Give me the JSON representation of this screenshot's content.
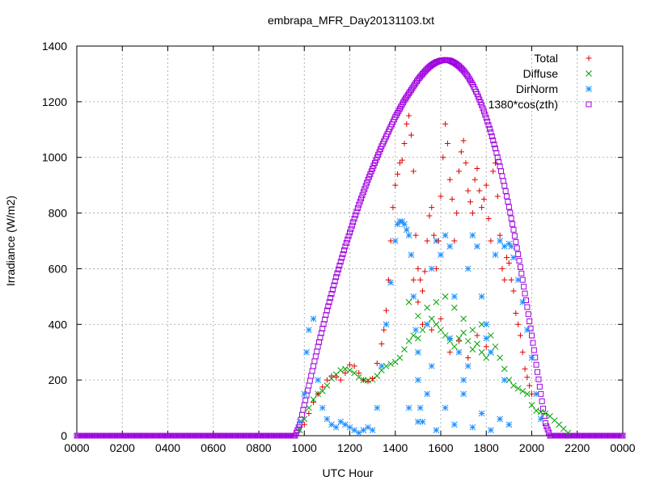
{
  "chart_data": {
    "type": "scatter",
    "title": "embrapa_MFR_Day20131103.txt",
    "xlabel": "UTC Hour",
    "ylabel": "Irradiance (W/m2)",
    "xlim": [
      0,
      2400
    ],
    "ylim": [
      0,
      1400
    ],
    "x_ticks": [
      "0000",
      "0200",
      "0400",
      "0600",
      "0800",
      "1000",
      "1200",
      "1400",
      "1600",
      "1800",
      "2000",
      "2200",
      "0000"
    ],
    "y_ticks": [
      "0",
      "200",
      "400",
      "600",
      "800",
      "1000",
      "1200",
      "1400"
    ],
    "grid": true,
    "legend_position": "top-right",
    "series": [
      {
        "name": "Total",
        "marker": "plus",
        "color": "#e00000",
        "points": [
          [
            1000,
            40
          ],
          [
            1020,
            80
          ],
          [
            1040,
            120
          ],
          [
            1060,
            150
          ],
          [
            1080,
            175
          ],
          [
            1100,
            200
          ],
          [
            1120,
            215
          ],
          [
            1140,
            210
          ],
          [
            1160,
            200
          ],
          [
            1180,
            225
          ],
          [
            1200,
            255
          ],
          [
            1220,
            250
          ],
          [
            1240,
            225
          ],
          [
            1260,
            200
          ],
          [
            1280,
            195
          ],
          [
            1300,
            205
          ],
          [
            1320,
            260
          ],
          [
            1340,
            330
          ],
          [
            1350,
            380
          ],
          [
            1360,
            450
          ],
          [
            1370,
            560
          ],
          [
            1380,
            700
          ],
          [
            1390,
            820
          ],
          [
            1400,
            900
          ],
          [
            1410,
            940
          ],
          [
            1420,
            980
          ],
          [
            1430,
            990
          ],
          [
            1440,
            1050
          ],
          [
            1450,
            1120
          ],
          [
            1460,
            1150
          ],
          [
            1470,
            1080
          ],
          [
            1480,
            950
          ],
          [
            1490,
            720
          ],
          [
            1500,
            600
          ],
          [
            1510,
            560
          ],
          [
            1520,
            520
          ],
          [
            1530,
            590
          ],
          [
            1540,
            700
          ],
          [
            1550,
            790
          ],
          [
            1560,
            820
          ],
          [
            1570,
            720
          ],
          [
            1580,
            600
          ],
          [
            1590,
            700
          ],
          [
            1600,
            860
          ],
          [
            1610,
            1000
          ],
          [
            1620,
            1120
          ],
          [
            1630,
            1050
          ],
          [
            1640,
            920
          ],
          [
            1650,
            850
          ],
          [
            1660,
            700
          ],
          [
            1670,
            800
          ],
          [
            1680,
            950
          ],
          [
            1690,
            1020
          ],
          [
            1700,
            1060
          ],
          [
            1710,
            980
          ],
          [
            1720,
            880
          ],
          [
            1730,
            840
          ],
          [
            1740,
            800
          ],
          [
            1750,
            920
          ],
          [
            1760,
            960
          ],
          [
            1770,
            880
          ],
          [
            1780,
            820
          ],
          [
            1790,
            850
          ],
          [
            1800,
            900
          ],
          [
            1810,
            780
          ],
          [
            1820,
            700
          ],
          [
            1830,
            950
          ],
          [
            1840,
            980
          ],
          [
            1850,
            860
          ],
          [
            1860,
            720
          ],
          [
            1870,
            600
          ],
          [
            1880,
            560
          ],
          [
            1890,
            640
          ],
          [
            1900,
            620
          ],
          [
            1910,
            560
          ],
          [
            1920,
            520
          ],
          [
            1930,
            440
          ],
          [
            1940,
            400
          ],
          [
            1950,
            360
          ],
          [
            1960,
            300
          ],
          [
            1970,
            240
          ],
          [
            1980,
            210
          ],
          [
            1990,
            180
          ],
          [
            2000,
            150
          ],
          [
            1480,
            560
          ],
          [
            1500,
            480
          ],
          [
            1520,
            400
          ],
          [
            1560,
            380
          ],
          [
            1600,
            420
          ],
          [
            1640,
            300
          ],
          [
            1680,
            340
          ],
          [
            1720,
            280
          ],
          [
            1760,
            360
          ],
          [
            1800,
            320
          ]
        ]
      },
      {
        "name": "Diffuse",
        "marker": "cross",
        "color": "#00a000",
        "points": [
          [
            980,
            20
          ],
          [
            1000,
            60
          ],
          [
            1020,
            100
          ],
          [
            1040,
            130
          ],
          [
            1060,
            150
          ],
          [
            1080,
            160
          ],
          [
            1100,
            180
          ],
          [
            1120,
            205
          ],
          [
            1140,
            220
          ],
          [
            1160,
            235
          ],
          [
            1180,
            240
          ],
          [
            1200,
            235
          ],
          [
            1220,
            225
          ],
          [
            1240,
            210
          ],
          [
            1260,
            200
          ],
          [
            1280,
            198
          ],
          [
            1300,
            202
          ],
          [
            1320,
            215
          ],
          [
            1340,
            235
          ],
          [
            1360,
            250
          ],
          [
            1380,
            258
          ],
          [
            1400,
            265
          ],
          [
            1420,
            280
          ],
          [
            1440,
            310
          ],
          [
            1460,
            340
          ],
          [
            1480,
            360
          ],
          [
            1500,
            350
          ],
          [
            1520,
            380
          ],
          [
            1540,
            400
          ],
          [
            1560,
            420
          ],
          [
            1580,
            400
          ],
          [
            1600,
            380
          ],
          [
            1620,
            360
          ],
          [
            1640,
            340
          ],
          [
            1660,
            320
          ],
          [
            1680,
            350
          ],
          [
            1700,
            370
          ],
          [
            1720,
            340
          ],
          [
            1740,
            310
          ],
          [
            1760,
            330
          ],
          [
            1780,
            300
          ],
          [
            1800,
            280
          ],
          [
            1820,
            300
          ],
          [
            1840,
            320
          ],
          [
            1860,
            280
          ],
          [
            1880,
            240
          ],
          [
            1900,
            200
          ],
          [
            1920,
            180
          ],
          [
            1940,
            170
          ],
          [
            1960,
            160
          ],
          [
            1980,
            150
          ],
          [
            2000,
            110
          ],
          [
            2020,
            90
          ],
          [
            2040,
            85
          ],
          [
            2060,
            80
          ],
          [
            2080,
            70
          ],
          [
            2100,
            55
          ],
          [
            2120,
            40
          ],
          [
            2140,
            25
          ],
          [
            2160,
            10
          ],
          [
            1460,
            480
          ],
          [
            1500,
            430
          ],
          [
            1540,
            460
          ],
          [
            1580,
            480
          ],
          [
            1620,
            500
          ],
          [
            1660,
            460
          ],
          [
            1700,
            420
          ],
          [
            1740,
            380
          ],
          [
            1780,
            400
          ],
          [
            1820,
            360
          ]
        ]
      },
      {
        "name": "DirNorm",
        "marker": "star",
        "color": "#1e90ff",
        "points": [
          [
            980,
            50
          ],
          [
            1000,
            150
          ],
          [
            1010,
            300
          ],
          [
            1020,
            380
          ],
          [
            1040,
            420
          ],
          [
            1060,
            200
          ],
          [
            1080,
            100
          ],
          [
            1100,
            60
          ],
          [
            1120,
            40
          ],
          [
            1140,
            30
          ],
          [
            1160,
            50
          ],
          [
            1180,
            40
          ],
          [
            1200,
            30
          ],
          [
            1220,
            20
          ],
          [
            1240,
            10
          ],
          [
            1260,
            20
          ],
          [
            1280,
            30
          ],
          [
            1300,
            20
          ],
          [
            1320,
            100
          ],
          [
            1340,
            250
          ],
          [
            1360,
            400
          ],
          [
            1380,
            550
          ],
          [
            1400,
            700
          ],
          [
            1410,
            760
          ],
          [
            1420,
            770
          ],
          [
            1430,
            770
          ],
          [
            1440,
            760
          ],
          [
            1450,
            740
          ],
          [
            1460,
            720
          ],
          [
            1470,
            650
          ],
          [
            1480,
            500
          ],
          [
            1490,
            380
          ],
          [
            1500,
            200
          ],
          [
            1510,
            100
          ],
          [
            1520,
            50
          ],
          [
            1540,
            400
          ],
          [
            1560,
            600
          ],
          [
            1580,
            700
          ],
          [
            1600,
            650
          ],
          [
            1620,
            720
          ],
          [
            1640,
            680
          ],
          [
            1660,
            500
          ],
          [
            1680,
            300
          ],
          [
            1700,
            200
          ],
          [
            1720,
            600
          ],
          [
            1740,
            720
          ],
          [
            1760,
            680
          ],
          [
            1780,
            500
          ],
          [
            1800,
            400
          ],
          [
            1820,
            300
          ],
          [
            1840,
            650
          ],
          [
            1860,
            700
          ],
          [
            1880,
            680
          ],
          [
            1900,
            690
          ],
          [
            1910,
            680
          ],
          [
            1920,
            640
          ],
          [
            1940,
            560
          ],
          [
            1960,
            480
          ],
          [
            1980,
            380
          ],
          [
            2000,
            280
          ],
          [
            2020,
            150
          ],
          [
            2040,
            60
          ],
          [
            1460,
            100
          ],
          [
            1500,
            50
          ],
          [
            1540,
            150
          ],
          [
            1580,
            20
          ],
          [
            1620,
            100
          ],
          [
            1660,
            40
          ],
          [
            1700,
            150
          ],
          [
            1740,
            30
          ],
          [
            1780,
            80
          ],
          [
            1820,
            20
          ],
          [
            1860,
            60
          ],
          [
            1900,
            40
          ],
          [
            1500,
            300
          ],
          [
            1560,
            250
          ],
          [
            1640,
            350
          ],
          [
            1720,
            250
          ],
          [
            1800,
            350
          ],
          [
            1880,
            200
          ]
        ]
      },
      {
        "name": "1380*cos(zth)",
        "marker": "square",
        "color": "#a000e0",
        "points": [
          [
            0,
            0
          ],
          [
            100,
            0
          ],
          [
            200,
            0
          ],
          [
            300,
            0
          ],
          [
            400,
            0
          ],
          [
            500,
            0
          ],
          [
            600,
            0
          ],
          [
            700,
            0
          ],
          [
            800,
            0
          ],
          [
            900,
            0
          ],
          [
            960,
            0
          ],
          [
            980,
            40
          ],
          [
            1000,
            110
          ],
          [
            1020,
            180
          ],
          [
            1040,
            250
          ],
          [
            1060,
            320
          ],
          [
            1080,
            385
          ],
          [
            1100,
            450
          ],
          [
            1120,
            510
          ],
          [
            1140,
            570
          ],
          [
            1160,
            625
          ],
          [
            1180,
            680
          ],
          [
            1200,
            730
          ],
          [
            1220,
            780
          ],
          [
            1240,
            830
          ],
          [
            1260,
            875
          ],
          [
            1280,
            920
          ],
          [
            1300,
            960
          ],
          [
            1320,
            1000
          ],
          [
            1340,
            1040
          ],
          [
            1360,
            1075
          ],
          [
            1380,
            1110
          ],
          [
            1400,
            1145
          ],
          [
            1420,
            1175
          ],
          [
            1440,
            1205
          ],
          [
            1460,
            1230
          ],
          [
            1480,
            1255
          ],
          [
            1500,
            1280
          ],
          [
            1520,
            1300
          ],
          [
            1540,
            1318
          ],
          [
            1560,
            1332
          ],
          [
            1580,
            1342
          ],
          [
            1600,
            1348
          ],
          [
            1620,
            1350
          ],
          [
            1640,
            1348
          ],
          [
            1660,
            1340
          ],
          [
            1680,
            1328
          ],
          [
            1700,
            1312
          ],
          [
            1720,
            1290
          ],
          [
            1740,
            1262
          ],
          [
            1760,
            1228
          ],
          [
            1780,
            1188
          ],
          [
            1800,
            1142
          ],
          [
            1820,
            1090
          ],
          [
            1840,
            1032
          ],
          [
            1860,
            968
          ],
          [
            1880,
            898
          ],
          [
            1900,
            822
          ],
          [
            1920,
            740
          ],
          [
            1940,
            652
          ],
          [
            1960,
            560
          ],
          [
            1980,
            462
          ],
          [
            2000,
            360
          ],
          [
            2020,
            255
          ],
          [
            2040,
            150
          ],
          [
            2060,
            45
          ],
          [
            2080,
            0
          ],
          [
            2100,
            0
          ],
          [
            2160,
            0
          ],
          [
            2200,
            0
          ],
          [
            2300,
            0
          ],
          [
            2400,
            0
          ]
        ]
      }
    ]
  }
}
